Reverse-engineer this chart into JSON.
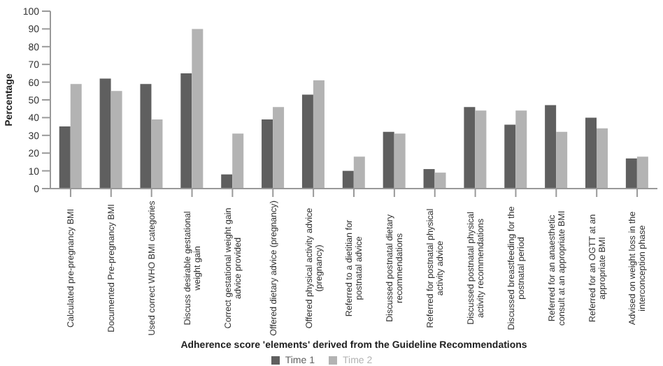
{
  "chart_data": {
    "type": "bar",
    "xlabel": "Adherence score 'elements' derived from the Guideline Recommendations",
    "ylabel": "Percentage",
    "categories": [
      "Calculated pre-pregnancy BMI",
      "Documented Pre-pregnancy BMI",
      "Used correct WHO BMI categories",
      "Discuss desirable gestational weight gain",
      "Correct gestational weight gain advice provided",
      "Offered dietary advice (pregnancy)",
      "Offered physical activity advice (pregnancy)",
      "Referred to a dietitian for postnatal advice",
      "Discussed postnatal dietary recommendations",
      "Referred for postnatal physical activity advice",
      "Discussed postnatal physical activity recommendations",
      "Discussed breastfeeding for the postnatal period",
      "Referred for an anaesthetic consult at an appropriate BMI",
      "Referred for an OGTT at an appropriate BMI",
      "Advised on weight loss in the interconception phase"
    ],
    "series": [
      {
        "name": "Time 1",
        "color": "#5f5f5f",
        "values": [
          35,
          62,
          59,
          65,
          8,
          39,
          53,
          10,
          32,
          11,
          46,
          36,
          47,
          40,
          17
        ]
      },
      {
        "name": "Time 2",
        "color": "#b3b3b3",
        "values": [
          59,
          55,
          39,
          90,
          31,
          46,
          61,
          18,
          31,
          9,
          44,
          44,
          32,
          34,
          18
        ]
      }
    ],
    "ylim": [
      0,
      100
    ],
    "yticks": [
      0,
      10,
      20,
      30,
      40,
      50,
      60,
      70,
      80,
      90,
      100
    ],
    "grid": false,
    "legend": "bottom"
  }
}
